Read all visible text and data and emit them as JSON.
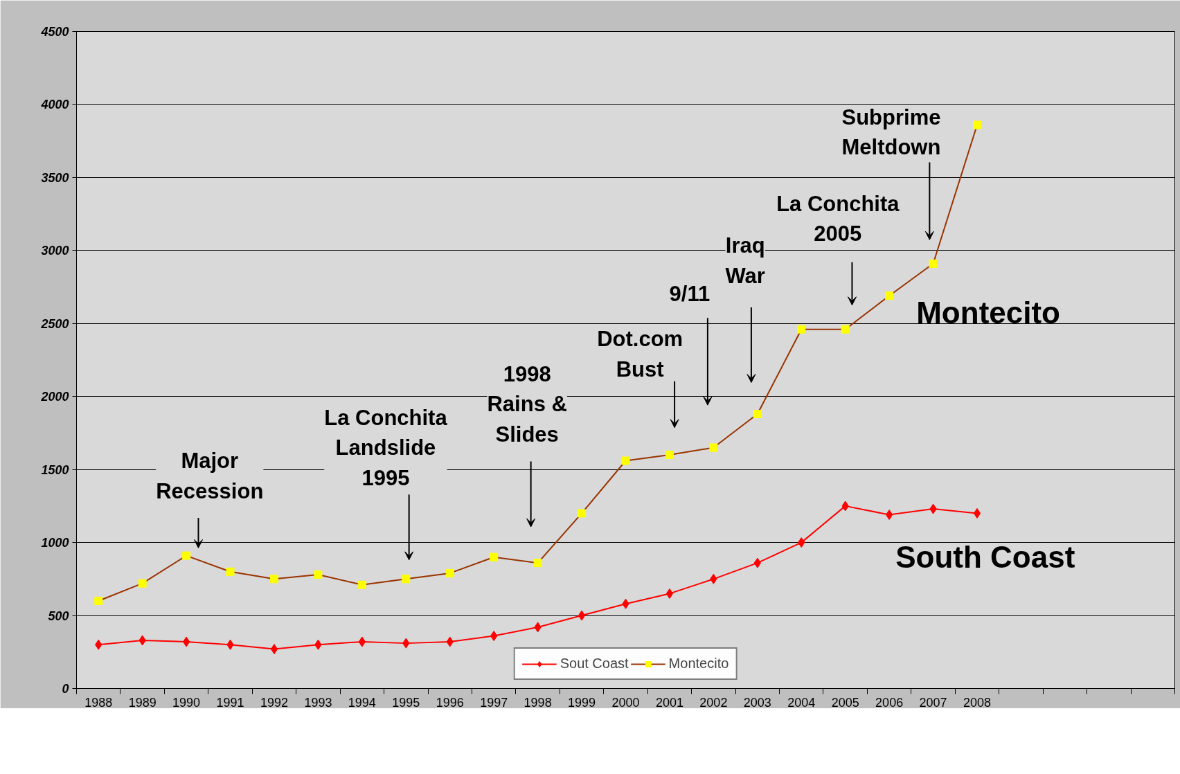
{
  "chart_data": {
    "type": "line",
    "categories": [
      "1988",
      "1989",
      "1990",
      "1991",
      "1992",
      "1993",
      "1994",
      "1995",
      "1996",
      "1997",
      "1998",
      "1999",
      "2000",
      "2001",
      "2002",
      "2003",
      "2004",
      "2005",
      "2006",
      "2007",
      "2008",
      null,
      null,
      null,
      null
    ],
    "series": [
      {
        "name": "Sout Coast",
        "color": "#ff0000",
        "marker": "diamond",
        "values": [
          300,
          330,
          320,
          300,
          270,
          300,
          320,
          310,
          320,
          360,
          420,
          500,
          580,
          650,
          750,
          860,
          1000,
          1250,
          1190,
          1230,
          1200,
          null,
          null,
          null,
          null
        ]
      },
      {
        "name": "Montecito",
        "color": "#993300",
        "marker": "square",
        "values": [
          600,
          720,
          910,
          800,
          750,
          780,
          710,
          750,
          790,
          900,
          860,
          1200,
          1560,
          1600,
          1650,
          1880,
          2460,
          2460,
          2690,
          2910,
          3860,
          null,
          null,
          null,
          null
        ]
      }
    ],
    "ylim": [
      0,
      4500
    ],
    "yticks": [
      0,
      500,
      1000,
      1500,
      2000,
      2500,
      3000,
      3500,
      4000,
      4500
    ],
    "grid": "y",
    "legend": "bottom",
    "annotations": [
      "Major\nRecession",
      "La Conchita\nLandslide\n1995",
      "1998\nRains &\nSlides",
      "Dot.com\nBust",
      "9/11",
      "Iraq\nWar",
      "La Conchita\n2005",
      "Subprime\nMeltdown",
      "Montecito",
      "South Coast"
    ]
  }
}
